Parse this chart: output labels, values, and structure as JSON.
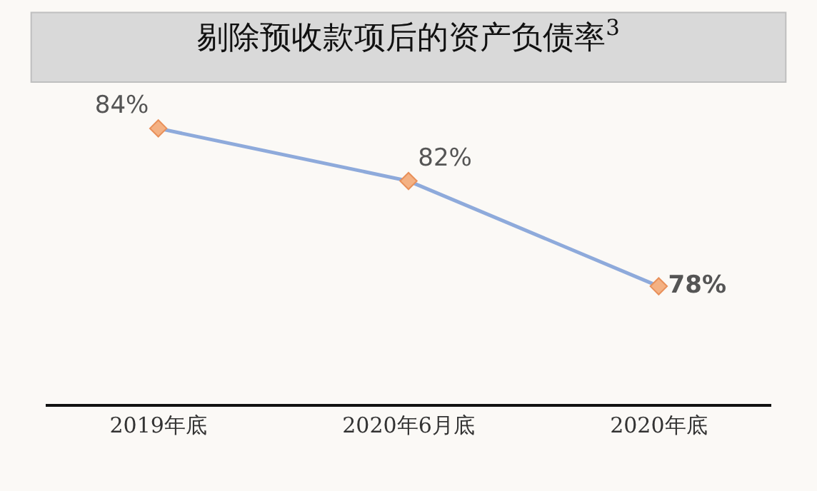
{
  "chart_data": {
    "type": "line",
    "title": "剔除预收款项后的资产负债率$^{3}$",
    "categories": [
      "2019年底",
      "2020年6月底",
      "2020年底"
    ],
    "series": [
      {
        "color": "#8eaadb",
        "colors": [
          "#f4b183",
          "#f4b183",
          "#f4b183"
        ],
        "values": [
          84,
          82,
          78
        ],
        "value_labels": [
          "84%",
          "82%",
          "78%"
        ]
      }
    ],
    "tick_labels": "x",
    "marker": "diamond",
    "line_style": "solid",
    "grid": false,
    "legend": false
  }
}
